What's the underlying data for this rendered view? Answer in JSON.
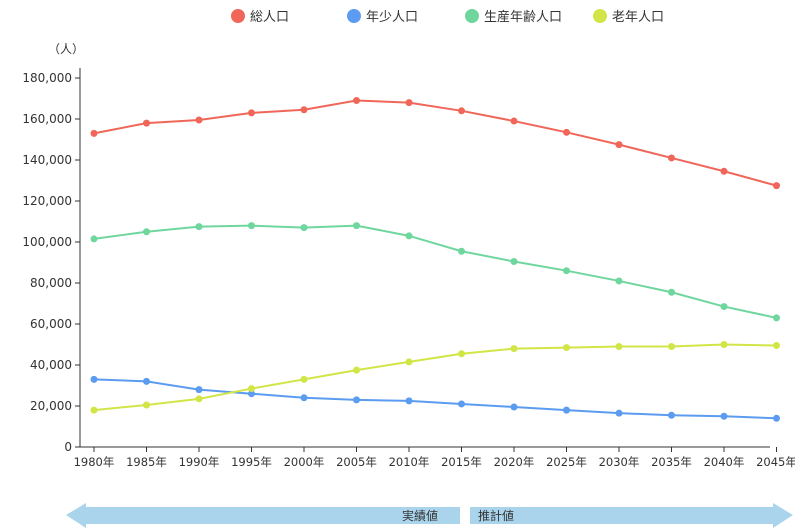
{
  "chart_data": {
    "type": "line",
    "title": "",
    "ylabel": "（人）",
    "xlabel": "",
    "ylim": [
      0,
      180000
    ],
    "yticks": [
      0,
      20000,
      40000,
      60000,
      80000,
      100000,
      120000,
      140000,
      160000,
      180000
    ],
    "ytick_labels": [
      "0",
      "20,000",
      "40,000",
      "60,000",
      "80,000",
      "100,000",
      "120,000",
      "140,000",
      "160,000",
      "180,000"
    ],
    "categories": [
      "1980年",
      "1985年",
      "1990年",
      "1995年",
      "2000年",
      "2005年",
      "2010年",
      "2015年",
      "2020年",
      "2025年",
      "2030年",
      "2035年",
      "2040年",
      "2045年"
    ],
    "grid": false,
    "legend_position": "top-center",
    "series": [
      {
        "name": "総人口",
        "color": "#f0675a",
        "values": [
          153000,
          158000,
          159500,
          163000,
          164500,
          169000,
          168000,
          164000,
          159000,
          153500,
          147500,
          141000,
          134500,
          127500
        ]
      },
      {
        "name": "年少人口",
        "color": "#5b9cf0",
        "values": [
          33000,
          32000,
          28000,
          26000,
          24000,
          23000,
          22500,
          21000,
          19500,
          18000,
          16500,
          15500,
          15000,
          14000
        ]
      },
      {
        "name": "生産年齢人口",
        "color": "#6fd69e",
        "values": [
          101500,
          105000,
          107500,
          108000,
          107000,
          108000,
          103000,
          95500,
          90500,
          86000,
          81000,
          75500,
          68500,
          63000
        ]
      },
      {
        "name": "老年人口",
        "color": "#d2e546",
        "values": [
          18000,
          20500,
          23500,
          28500,
          33000,
          37500,
          41500,
          45500,
          48000,
          48500,
          49000,
          49000,
          50000,
          49500
        ]
      }
    ],
    "annotations": {
      "actual_label": "実績値",
      "estimate_label": "推計値",
      "arrow_color": "#a9d4ec"
    }
  }
}
